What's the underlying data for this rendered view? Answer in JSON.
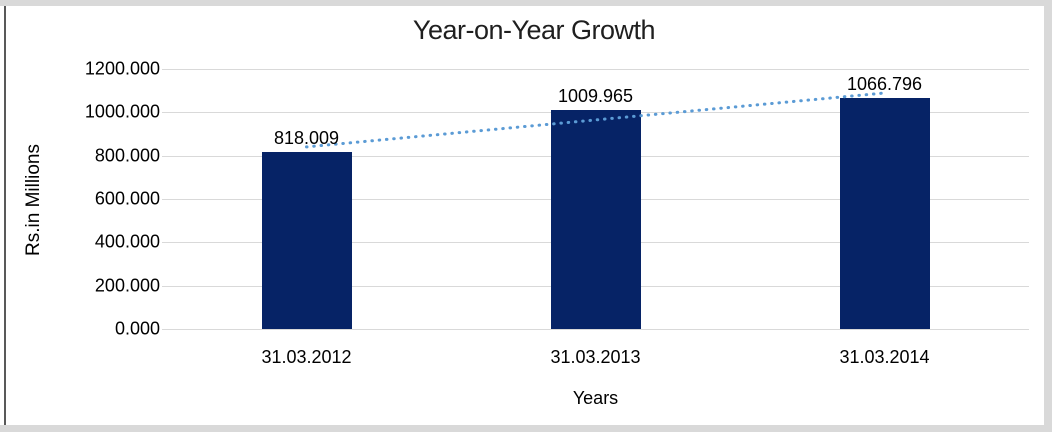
{
  "chart_data": {
    "type": "bar",
    "title": "Year-on-Year Growth",
    "xlabel": "Years",
    "ylabel": "Rs.in Millions",
    "categories": [
      "31.03.2012",
      "31.03.2013",
      "31.03.2014"
    ],
    "values": [
      818.009,
      1009.965,
      1066.796
    ],
    "data_labels": [
      "818.009",
      "1009.965",
      "1066.796"
    ],
    "ylim": [
      0,
      1200
    ],
    "ytick_step": 200,
    "ytick_labels": [
      "1200.000",
      "1000.000",
      "800.000",
      "600.000",
      "400.000",
      "200.000",
      "0.000"
    ],
    "grid": true,
    "legend": false,
    "trendline": {
      "type": "linear",
      "style": "dotted"
    },
    "colors": {
      "bar": "#062366",
      "trendline": "#5b9bd5",
      "gridline": "#d9d9d9",
      "frame": "#d9d9d9",
      "frame_left_line": "#595959",
      "text": "#000000"
    }
  }
}
